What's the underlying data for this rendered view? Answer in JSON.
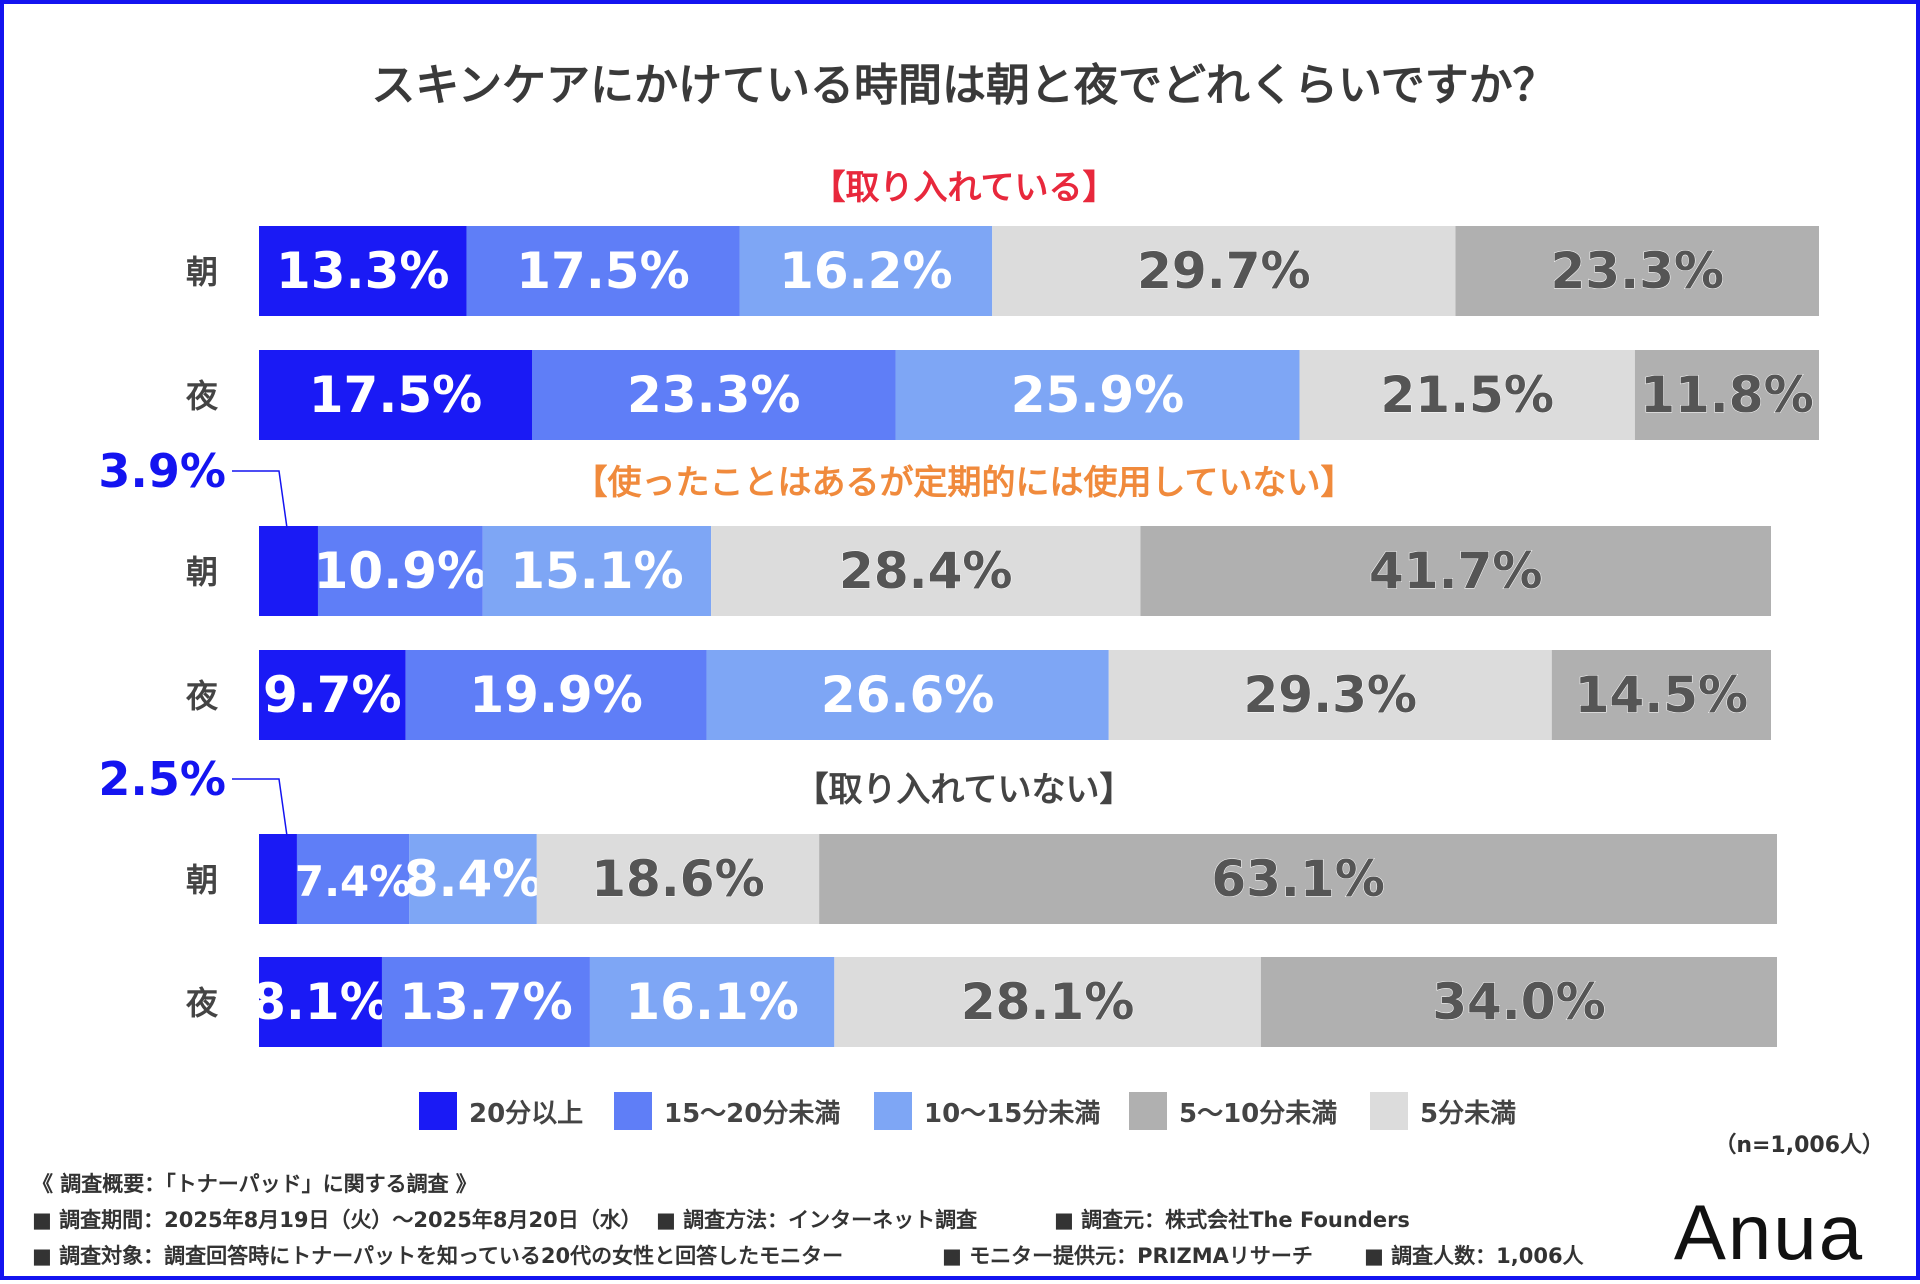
{
  "chart_data": {
    "type": "bar",
    "orientation": "horizontal-stacked-100",
    "title": "スキンケアにかけている時間は朝と夜でどれくらいですか？",
    "categories_order": [
      "20分以上",
      "15〜20分未満",
      "10〜15分未満",
      "5分未満",
      "5〜10分未満"
    ],
    "series_colors": {
      "20分以上": "#1a1af5",
      "15〜20分未満": "#5f7ef7",
      "10〜15分未満": "#7ea6f5",
      "5分未満": "#dcdcdc",
      "5〜10分未満": "#b0b0b0"
    },
    "groups": [
      {
        "title": "【取り入れている】",
        "title_color": "#e8283c",
        "rows": [
          {
            "label": "朝",
            "values": [
              13.3,
              17.5,
              16.2,
              29.7,
              23.3
            ],
            "value_labels": [
              "13.3%",
              "17.5%",
              "16.2%",
              "29.7%",
              "23.3%"
            ]
          },
          {
            "label": "夜",
            "values": [
              17.5,
              23.3,
              25.9,
              21.5,
              11.8
            ],
            "value_labels": [
              "17.5%",
              "23.3%",
              "25.9%",
              "21.5%",
              "11.8%"
            ]
          }
        ]
      },
      {
        "title": "【使ったことはあるが定期的には使用していない】",
        "title_color": "#f08a3c",
        "rows": [
          {
            "label": "朝",
            "values": [
              3.9,
              10.9,
              15.1,
              28.4,
              41.7
            ],
            "value_labels": [
              "3.9%",
              "10.9%",
              "15.1%",
              "28.4%",
              "41.7%"
            ],
            "callout_first": true
          },
          {
            "label": "夜",
            "values": [
              9.7,
              19.9,
              26.6,
              29.3,
              14.5
            ],
            "value_labels": [
              "9.7%",
              "19.9%",
              "26.6%",
              "29.3%",
              "14.5%"
            ]
          }
        ]
      },
      {
        "title": "【取り入れていない】",
        "title_color": "#444444",
        "rows": [
          {
            "label": "朝",
            "values": [
              2.5,
              7.4,
              8.4,
              18.6,
              63.1
            ],
            "value_labels": [
              "2.5%",
              "7.4%",
              "8.4%",
              "18.6%",
              "63.1%"
            ],
            "callout_first": true
          },
          {
            "label": "夜",
            "values": [
              8.1,
              13.7,
              16.1,
              28.1,
              34.0
            ],
            "value_labels": [
              "8.1%",
              "13.7%",
              "16.1%",
              "28.1%",
              "34.0%"
            ]
          }
        ]
      }
    ],
    "legend": {
      "placement": "bottom",
      "items": [
        {
          "label": "20分以上",
          "color": "#1a1af5"
        },
        {
          "label": "15〜20分未満",
          "color": "#5f7ef7"
        },
        {
          "label": "10〜15分未満",
          "color": "#7ea6f5"
        },
        {
          "label": "5〜10分未満",
          "color": "#b0b0b0"
        },
        {
          "label": "5分未満",
          "color": "#dcdcdc"
        }
      ]
    },
    "sample_note": "（n=1,006人）"
  },
  "footer": {
    "line1": "《 調査概要：「トナーパッド」に関する調査 》",
    "items_row2": [
      "■ 調査期間：2025年8月19日（火）〜2025年8月20日（水）",
      "■ 調査方法：インターネット調査",
      "■ 調査元：株式会社The Founders"
    ],
    "items_row3": [
      "■ 調査対象：調査回答時にトナーパットを知っている20代の女性と回答したモニター",
      "■ モニター提供元：PRIZMAリサーチ",
      "■ 調査人数：1,006人"
    ]
  },
  "logo": "Anua",
  "colors": {
    "frame": "#1414f0",
    "callout": "#1414f0"
  }
}
